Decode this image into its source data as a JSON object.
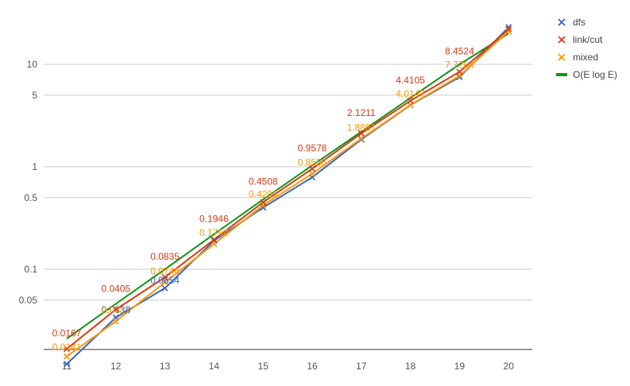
{
  "chart_data": {
    "type": "line",
    "title": "",
    "xlabel": "",
    "ylabel": "",
    "y_scale": "log",
    "grid": "horizontal",
    "legend_position": "right",
    "categories": [
      "11",
      "12",
      "13",
      "14",
      "15",
      "16",
      "17",
      "18",
      "19",
      "20"
    ],
    "x_tick_labels": [
      "11",
      "12",
      "13",
      "14",
      "15",
      "16",
      "17",
      "18",
      "19",
      "20"
    ],
    "y_ticks": [
      0.05,
      0.1,
      0.5,
      1,
      5,
      10
    ],
    "y_tick_labels": [
      "0.05",
      "0.1",
      "0.5",
      "1",
      "5",
      "10"
    ],
    "ylim": [
      0.015,
      25
    ],
    "series": [
      {
        "name": "dfs",
        "marker": "x",
        "color": "#3366cc",
        "values": [
          0.0119,
          0.0338,
          0.0654,
          0.19,
          0.4,
          0.79,
          1.85,
          4.0,
          7.5,
          23.0
        ],
        "data_labels": [
          "",
          "0.0338",
          "0.0654",
          "",
          "",
          "",
          "",
          "",
          "",
          ""
        ]
      },
      {
        "name": "link/cut",
        "marker": "x",
        "color": "#dc3912",
        "values": [
          0.0167,
          0.0405,
          0.0835,
          0.1946,
          0.4508,
          0.9578,
          2.1211,
          4.4105,
          8.4524,
          22.0
        ],
        "data_labels": [
          "0.0167",
          "0.0405",
          "0.0835",
          "0.1946",
          "0.4508",
          "0.9578",
          "2.1211",
          "4.4105",
          "8.4524",
          ""
        ]
      },
      {
        "name": "mixed",
        "marker": "x",
        "color": "#ff9900",
        "values": [
          0.0141,
          0.0311,
          0.0746,
          0.1764,
          0.4205,
          0.8556,
          1.8881,
          4.0147,
          7.7264,
          21.0
        ],
        "data_labels": [
          "0.0141",
          "0.0311",
          "0.0746",
          "0.1764",
          "0.4205",
          "0.8556",
          "1.8881",
          "4.0147",
          "7.7264",
          ""
        ]
      },
      {
        "name": "O(E log E)",
        "marker": "none",
        "color": "#109618",
        "values": [
          0.021,
          0.046,
          0.1,
          0.22,
          0.48,
          1.03,
          2.2,
          4.7,
          10.0,
          20.0
        ],
        "data_labels": [
          "",
          "",
          "",
          "",
          "",
          "",
          "",
          "",
          "",
          ""
        ]
      }
    ]
  }
}
